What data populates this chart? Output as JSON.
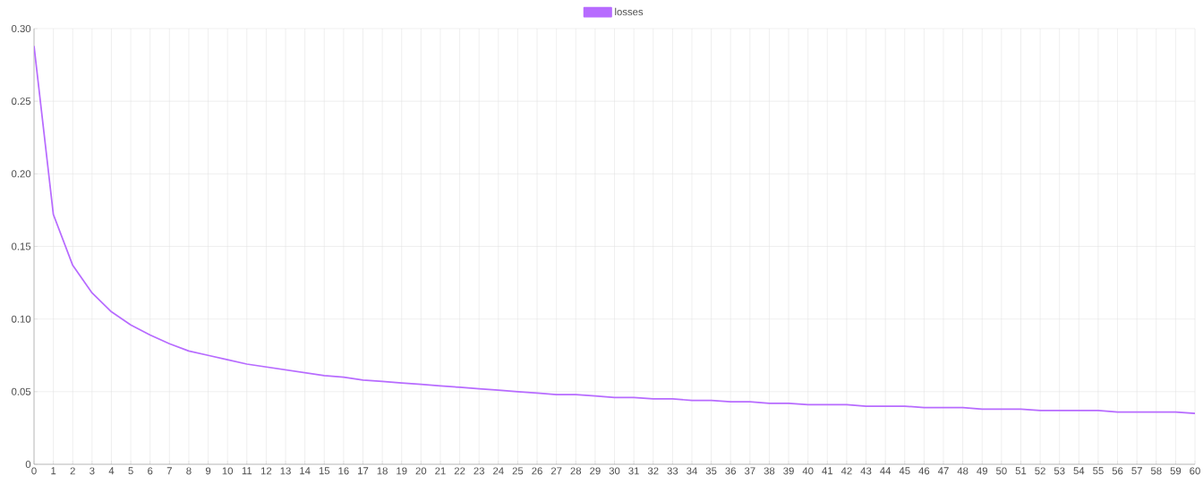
{
  "chart_data": {
    "type": "line",
    "categories": [
      "0",
      "1",
      "2",
      "3",
      "4",
      "5",
      "6",
      "7",
      "8",
      "9",
      "10",
      "11",
      "12",
      "13",
      "14",
      "15",
      "16",
      "17",
      "18",
      "19",
      "20",
      "21",
      "22",
      "23",
      "24",
      "25",
      "26",
      "27",
      "28",
      "29",
      "30",
      "31",
      "32",
      "33",
      "34",
      "35",
      "36",
      "37",
      "38",
      "39",
      "40",
      "41",
      "42",
      "43",
      "44",
      "45",
      "46",
      "47",
      "48",
      "49",
      "50",
      "51",
      "52",
      "53",
      "54",
      "55",
      "56",
      "57",
      "58",
      "59",
      "60"
    ],
    "series": [
      {
        "name": "losses",
        "color": "#b76bff",
        "values": [
          0.288,
          0.172,
          0.137,
          0.118,
          0.105,
          0.096,
          0.089,
          0.083,
          0.078,
          0.075,
          0.072,
          0.069,
          0.067,
          0.065,
          0.063,
          0.061,
          0.06,
          0.058,
          0.057,
          0.056,
          0.055,
          0.054,
          0.053,
          0.052,
          0.051,
          0.05,
          0.049,
          0.048,
          0.048,
          0.047,
          0.046,
          0.046,
          0.045,
          0.045,
          0.044,
          0.044,
          0.043,
          0.043,
          0.042,
          0.042,
          0.041,
          0.041,
          0.041,
          0.04,
          0.04,
          0.04,
          0.039,
          0.039,
          0.039,
          0.038,
          0.038,
          0.038,
          0.037,
          0.037,
          0.037,
          0.037,
          0.036,
          0.036,
          0.036,
          0.036,
          0.035
        ]
      }
    ],
    "ylim": [
      0,
      0.3
    ],
    "yticks": [
      0,
      {
        "value": 0.05,
        "label": "0.05"
      },
      {
        "value": 0.1,
        "label": "0.10"
      },
      {
        "value": 0.15,
        "label": "0.15"
      },
      {
        "value": 0.2,
        "label": "0.20"
      },
      {
        "value": 0.25,
        "label": "0.25"
      },
      {
        "value": 0.3,
        "label": "0.30"
      }
    ],
    "grid": true,
    "legend": "top",
    "marker": "none",
    "line_style": "solid"
  }
}
